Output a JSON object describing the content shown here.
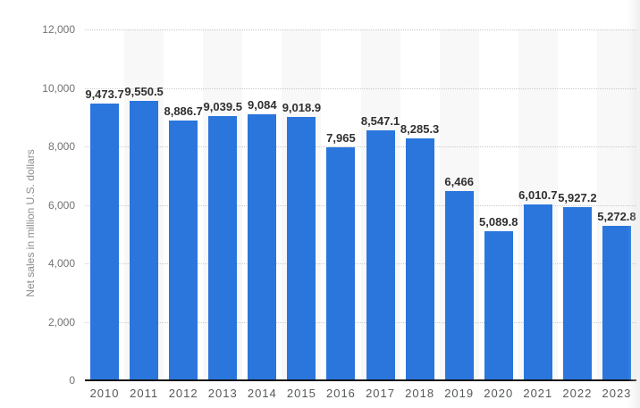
{
  "chart_data": {
    "type": "bar",
    "title": "",
    "xlabel": "",
    "ylabel": "Net sales in million U.S. dollars",
    "categories": [
      "2010",
      "2011",
      "2012",
      "2013",
      "2014",
      "2015",
      "2016",
      "2017",
      "2018",
      "2019",
      "2020",
      "2021",
      "2022",
      "2023"
    ],
    "values": [
      9473.7,
      9550.5,
      8886.7,
      9039.5,
      9084,
      9018.9,
      7965,
      8547.1,
      8285.3,
      6466,
      5089.8,
      6010.7,
      5927.2,
      5272.8
    ],
    "value_labels": [
      "9,473.7",
      "9,550.5",
      "8,886.7",
      "9,039.5",
      "9,084",
      "9,018.9",
      "7,965",
      "8,547.1",
      "8,285.3",
      "6,466",
      "5,089.8",
      "6,010.7",
      "5,927.2",
      "5,272.8"
    ],
    "ylim": [
      0,
      12000
    ],
    "y_tick_values": [
      0,
      2000,
      4000,
      6000,
      8000,
      10000,
      12000
    ],
    "y_tick_labels": [
      "0",
      "2,000",
      "4,000",
      "6,000",
      "8,000",
      "10,000",
      "12,000"
    ],
    "grid": "horizontal-dotted",
    "legend_position": "none",
    "striped_columns": "alternating, stripes behind odd-index years (2011, 2013, ...)"
  },
  "colors": {
    "bar": "#2a76dd",
    "value_label": "#2f2f2f",
    "x_tick": "#55585a",
    "y_tick": "#737373",
    "axis_title": "#8d8d8d",
    "gridline": "#c9c9c9",
    "baseline": "#141414",
    "stripe": "#f8f8f8",
    "background": "#ffffff"
  }
}
